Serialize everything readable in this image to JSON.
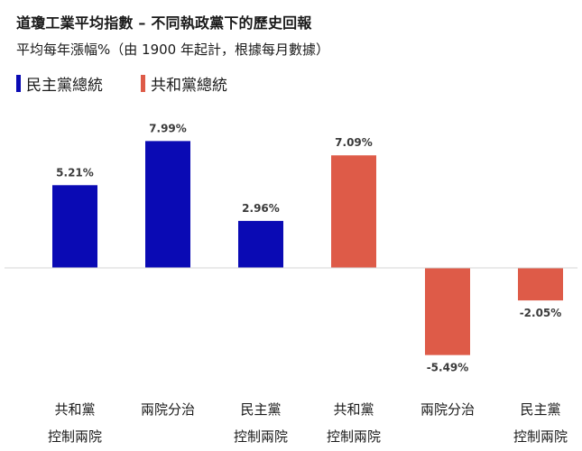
{
  "title": "道瓊工業平均指數 – 不同執政黨下的歷史回報",
  "subtitle": "平均每年漲幅%（由 1900 年起計，根據每月數據）",
  "legend": [
    {
      "label": "民主黨總統",
      "color": "#0a0ab4"
    },
    {
      "label": "共和黨總統",
      "color": "#de5b48"
    }
  ],
  "chart_data": {
    "type": "bar",
    "title": "道瓊工業平均指數 – 不同執政黨下的歷史回報",
    "subtitle": "平均每年漲幅%（由 1900 年起計，根據每月數據）",
    "xlabel": "",
    "ylabel": "",
    "unit": "%",
    "grid": false,
    "legend_position": "top-left",
    "series": [
      {
        "name": "民主黨總統",
        "color": "#0a0ab4",
        "indices": [
          0,
          1,
          2
        ]
      },
      {
        "name": "共和黨總統",
        "color": "#de5b48",
        "indices": [
          3,
          4,
          5
        ]
      }
    ],
    "bars": [
      {
        "category": [
          "共和黨",
          "控制兩院"
        ],
        "value": 5.21,
        "label": "5.21%",
        "party": 0
      },
      {
        "category": [
          "兩院分治"
        ],
        "value": 7.99,
        "label": "7.99%",
        "party": 0
      },
      {
        "category": [
          "民主黨",
          "控制兩院"
        ],
        "value": 2.96,
        "label": "2.96%",
        "party": 0
      },
      {
        "category": [
          "共和黨",
          "控制兩院"
        ],
        "value": 7.09,
        "label": "7.09%",
        "party": 1
      },
      {
        "category": [
          "兩院分治"
        ],
        "value": -5.49,
        "label": "-5.49%",
        "party": 1
      },
      {
        "category": [
          "民主黨",
          "控制兩院"
        ],
        "value": -2.05,
        "label": "-2.05%",
        "party": 1
      }
    ],
    "ylim": [
      -6.5,
      8.5
    ]
  }
}
